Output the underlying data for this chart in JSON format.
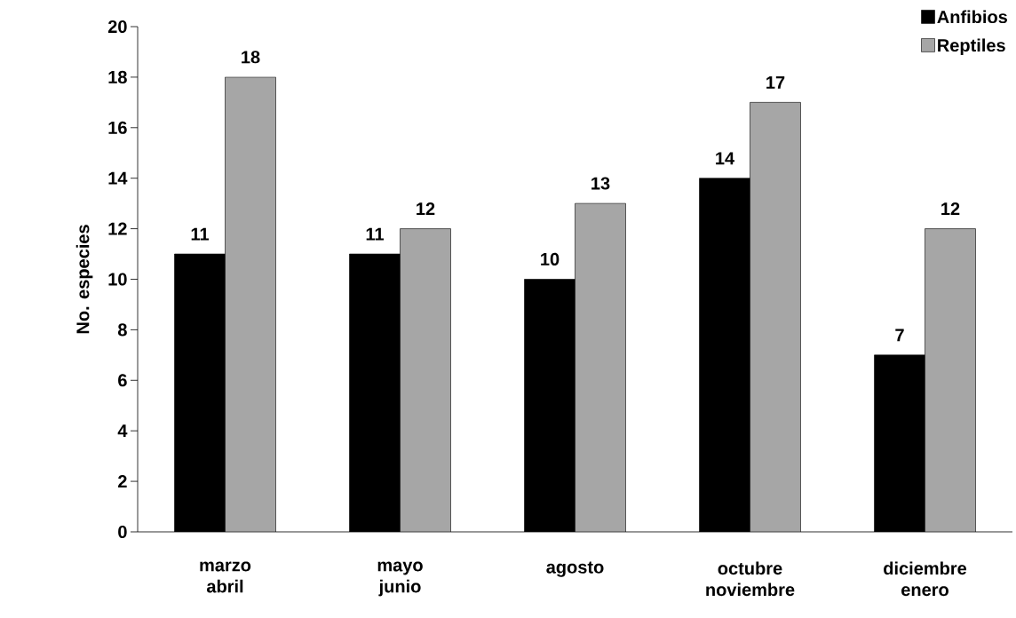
{
  "chart_data": {
    "type": "bar",
    "ylabel": "No. especies",
    "categories": [
      "marzo abril",
      "mayo junio",
      "agosto",
      "octubre noviembre",
      "diciembre enero"
    ],
    "series": [
      {
        "name": "Anfibios",
        "color": "#000000",
        "values": [
          11,
          11,
          10,
          14,
          7
        ]
      },
      {
        "name": "Reptiles",
        "color": "#a6a6a6",
        "values": [
          18,
          12,
          13,
          17,
          12
        ]
      }
    ],
    "ylim": [
      0,
      20
    ],
    "yticks": [
      0,
      2,
      4,
      6,
      8,
      10,
      12,
      14,
      16,
      18,
      20
    ],
    "data_labels": true,
    "legend": "top right",
    "grid": false
  }
}
